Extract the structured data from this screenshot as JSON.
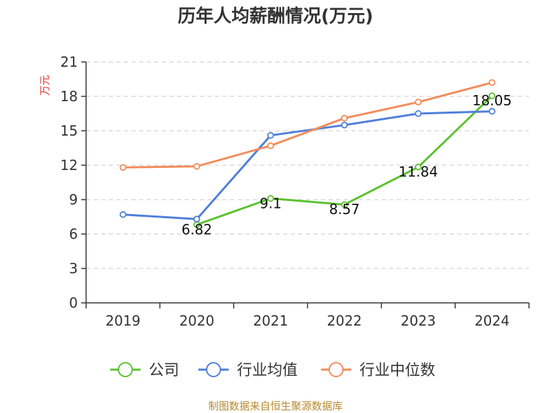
{
  "chart_data": {
    "type": "line",
    "title": "历年人均薪酬情况(万元)",
    "ylabel": "万元",
    "xlabel": "",
    "categories": [
      "2019",
      "2020",
      "2021",
      "2022",
      "2023",
      "2024"
    ],
    "ylim": [
      0,
      21
    ],
    "yticks": [
      0,
      3,
      6,
      9,
      12,
      15,
      18,
      21
    ],
    "grid": true,
    "legend_position": "bottom",
    "series": [
      {
        "name": "公司",
        "color": "#5bc12f",
        "values": [
          null,
          6.82,
          9.1,
          8.57,
          11.84,
          18.05
        ],
        "data_labels": [
          null,
          "6.82",
          "9.1",
          "8.57",
          "11.84",
          "18.05"
        ]
      },
      {
        "name": "行业均值",
        "color": "#4f7fd9",
        "values": [
          7.7,
          7.3,
          14.6,
          15.5,
          16.5,
          16.7
        ]
      },
      {
        "name": "行业中位数",
        "color": "#f28c5a",
        "values": [
          11.8,
          11.9,
          13.7,
          16.1,
          17.5,
          19.2
        ]
      }
    ]
  },
  "source": "制图数据来自恒生聚源数据库"
}
